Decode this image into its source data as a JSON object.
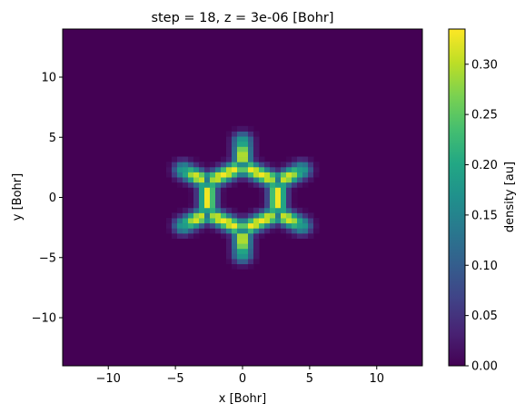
{
  "chart_data": {
    "type": "heatmap",
    "title": "step = 18, z = 3e-06 [Bohr]",
    "xlabel": "x [Bohr]",
    "ylabel": "y [Bohr]",
    "xlim": [
      -13.4,
      13.4
    ],
    "ylim": [
      -14.0,
      14.0
    ],
    "xticks": [
      "−10",
      "−5",
      "0",
      "5",
      "10"
    ],
    "xtick_values": [
      -10,
      -5,
      0,
      5,
      10
    ],
    "yticks": [
      "−10",
      "−5",
      "0",
      "5",
      "10"
    ],
    "ytick_values": [
      -10,
      -5,
      0,
      5,
      10
    ],
    "colorbar": {
      "label": "density [au]",
      "range": [
        0.0,
        0.335
      ],
      "ticks": [
        "0.00",
        "0.05",
        "0.10",
        "0.15",
        "0.20",
        "0.25",
        "0.30"
      ],
      "tick_values": [
        0.0,
        0.05,
        0.1,
        0.15,
        0.2,
        0.25,
        0.3
      ],
      "colormap": "viridis"
    },
    "grid_resolution": 66,
    "background_value": 0.0,
    "carbon_atoms": [
      [
        2.6,
        1.3
      ],
      [
        0.0,
        2.65
      ],
      [
        -2.6,
        1.3
      ],
      [
        -2.6,
        -1.3
      ],
      [
        0.0,
        -2.65
      ],
      [
        2.6,
        -1.3
      ]
    ],
    "hydrogen_atoms": [
      [
        4.4,
        2.3
      ],
      [
        0.0,
        4.7
      ],
      [
        -4.4,
        2.3
      ],
      [
        -4.4,
        -2.3
      ],
      [
        0.0,
        -4.7
      ],
      [
        4.4,
        -2.3
      ]
    ],
    "peak_value": 0.33,
    "atom_core_value": 0.05
  }
}
